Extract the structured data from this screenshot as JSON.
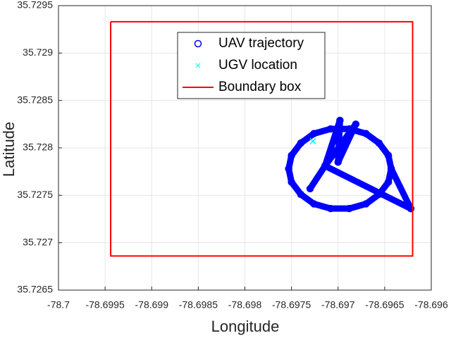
{
  "chart_data": {
    "type": "scatter",
    "xlabel": "Longitude",
    "ylabel": "Latitude",
    "xlim": [
      -78.7,
      -78.696
    ],
    "ylim": [
      35.7265,
      35.7295
    ],
    "xticks": [
      -78.7,
      -78.6995,
      -78.699,
      -78.6985,
      -78.698,
      -78.6975,
      -78.697,
      -78.6965,
      -78.696
    ],
    "yticks": [
      35.7265,
      35.727,
      35.7275,
      35.728,
      35.7285,
      35.729,
      35.7295
    ],
    "grid": true,
    "legend": "top",
    "series": [
      {
        "name": "UAV trajectory",
        "color": "#0000ff",
        "marker": "circle",
        "x": [
          -78.69643,
          -78.69646,
          -78.69656,
          -78.6967,
          -78.69688,
          -78.69708,
          -78.69726,
          -78.6974,
          -78.6975,
          -78.69753,
          -78.6975,
          -78.6974,
          -78.69726,
          -78.69708,
          -78.69688,
          -78.6967,
          -78.69656,
          -78.69646,
          -78.69643,
          -78.69622,
          -78.69714,
          -78.6973,
          -78.69714,
          -78.69698,
          -78.697,
          -78.69681,
          -78.69714,
          -78.69622
        ],
        "y": [
          35.72778,
          35.72792,
          35.72805,
          35.72815,
          35.7282,
          35.7282,
          35.72815,
          35.72805,
          35.72792,
          35.72778,
          35.72764,
          35.72751,
          35.72741,
          35.72736,
          35.72736,
          35.72741,
          35.72751,
          35.72764,
          35.72778,
          35.72736,
          35.72781,
          35.72757,
          35.72781,
          35.72829,
          35.72785,
          35.72825,
          35.72781,
          35.72736
        ]
      },
      {
        "name": "UGV location",
        "color": "#00ffff",
        "marker": "x",
        "x": [
          -78.69727
        ],
        "y": [
          35.72807
        ]
      },
      {
        "name": "Boundary box",
        "color": "#ff0000",
        "marker": "line",
        "x": [
          -78.69944,
          -78.6962,
          -78.6962,
          -78.69944,
          -78.69944
        ],
        "y": [
          35.72933,
          35.72933,
          35.72686,
          35.72686,
          35.72933
        ]
      }
    ]
  }
}
